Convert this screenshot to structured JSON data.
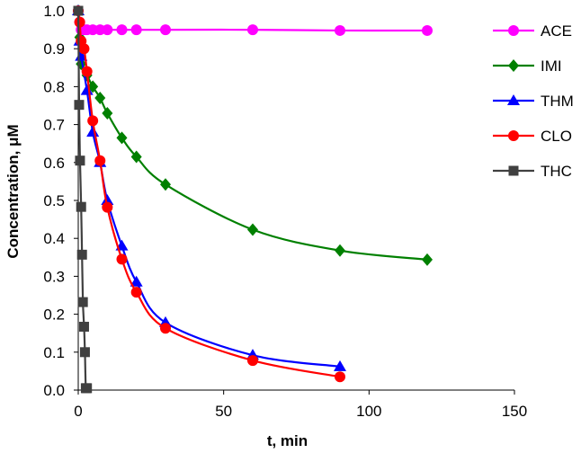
{
  "chart_data": {
    "type": "line",
    "title": "",
    "xlabel": "t, min",
    "ylabel": "Concentration, μM",
    "xlim": [
      0,
      150
    ],
    "ylim": [
      0,
      1.0
    ],
    "xticks": [
      0,
      50,
      100,
      150
    ],
    "yticks": [
      0.0,
      0.1,
      0.2,
      0.3,
      0.4,
      0.5,
      0.6,
      0.7,
      0.8,
      0.9,
      1.0
    ],
    "xtick_labels": [
      "0",
      "50",
      "100",
      "150"
    ],
    "ytick_labels": [
      "0.0",
      "0.1",
      "0.2",
      "0.3",
      "0.4",
      "0.5",
      "0.6",
      "0.7",
      "0.8",
      "0.9",
      "1.0"
    ],
    "grid": false,
    "legend_position": "right",
    "series": [
      {
        "name": "ACE",
        "color": "#ff00ff",
        "marker": "circle",
        "x": [
          0,
          0.5,
          1,
          2,
          3,
          5,
          7.5,
          10,
          15,
          20,
          30,
          60,
          90,
          120
        ],
        "y": [
          1.0,
          0.97,
          0.95,
          0.95,
          0.95,
          0.95,
          0.95,
          0.95,
          0.95,
          0.95,
          0.95,
          0.95,
          0.948,
          0.948
        ]
      },
      {
        "name": "IMI",
        "color": "#008000",
        "marker": "diamond",
        "x": [
          0,
          0.5,
          1,
          3,
          5,
          7.5,
          10,
          15,
          20,
          30,
          60,
          90,
          120
        ],
        "y": [
          1.0,
          0.93,
          0.86,
          0.83,
          0.8,
          0.77,
          0.73,
          0.665,
          0.615,
          0.542,
          0.423,
          0.368,
          0.344
        ]
      },
      {
        "name": "THM",
        "color": "#0000ff",
        "marker": "triangle",
        "x": [
          0,
          0.5,
          1,
          3,
          5,
          7.5,
          10,
          15,
          20,
          30,
          60,
          90
        ],
        "y": [
          1.0,
          0.92,
          0.88,
          0.79,
          0.68,
          0.6,
          0.5,
          0.38,
          0.285,
          0.178,
          0.092,
          0.062
        ]
      },
      {
        "name": "CLO",
        "color": "#ff0000",
        "marker": "circle",
        "x": [
          0,
          0.5,
          1,
          2,
          3,
          5,
          7.5,
          10,
          15,
          20,
          30,
          60,
          90
        ],
        "y": [
          1.0,
          0.97,
          0.92,
          0.9,
          0.84,
          0.71,
          0.605,
          0.482,
          0.345,
          0.258,
          0.163,
          0.078,
          0.035
        ]
      },
      {
        "name": "THC",
        "color": "#404040",
        "marker": "square",
        "x": [
          0,
          0.3,
          0.6,
          1,
          1.3,
          1.6,
          2,
          2.3,
          2.6,
          3
        ],
        "y": [
          1.0,
          0.752,
          0.605,
          0.483,
          0.357,
          0.232,
          0.167,
          0.1,
          0.005,
          0.005
        ]
      }
    ]
  }
}
